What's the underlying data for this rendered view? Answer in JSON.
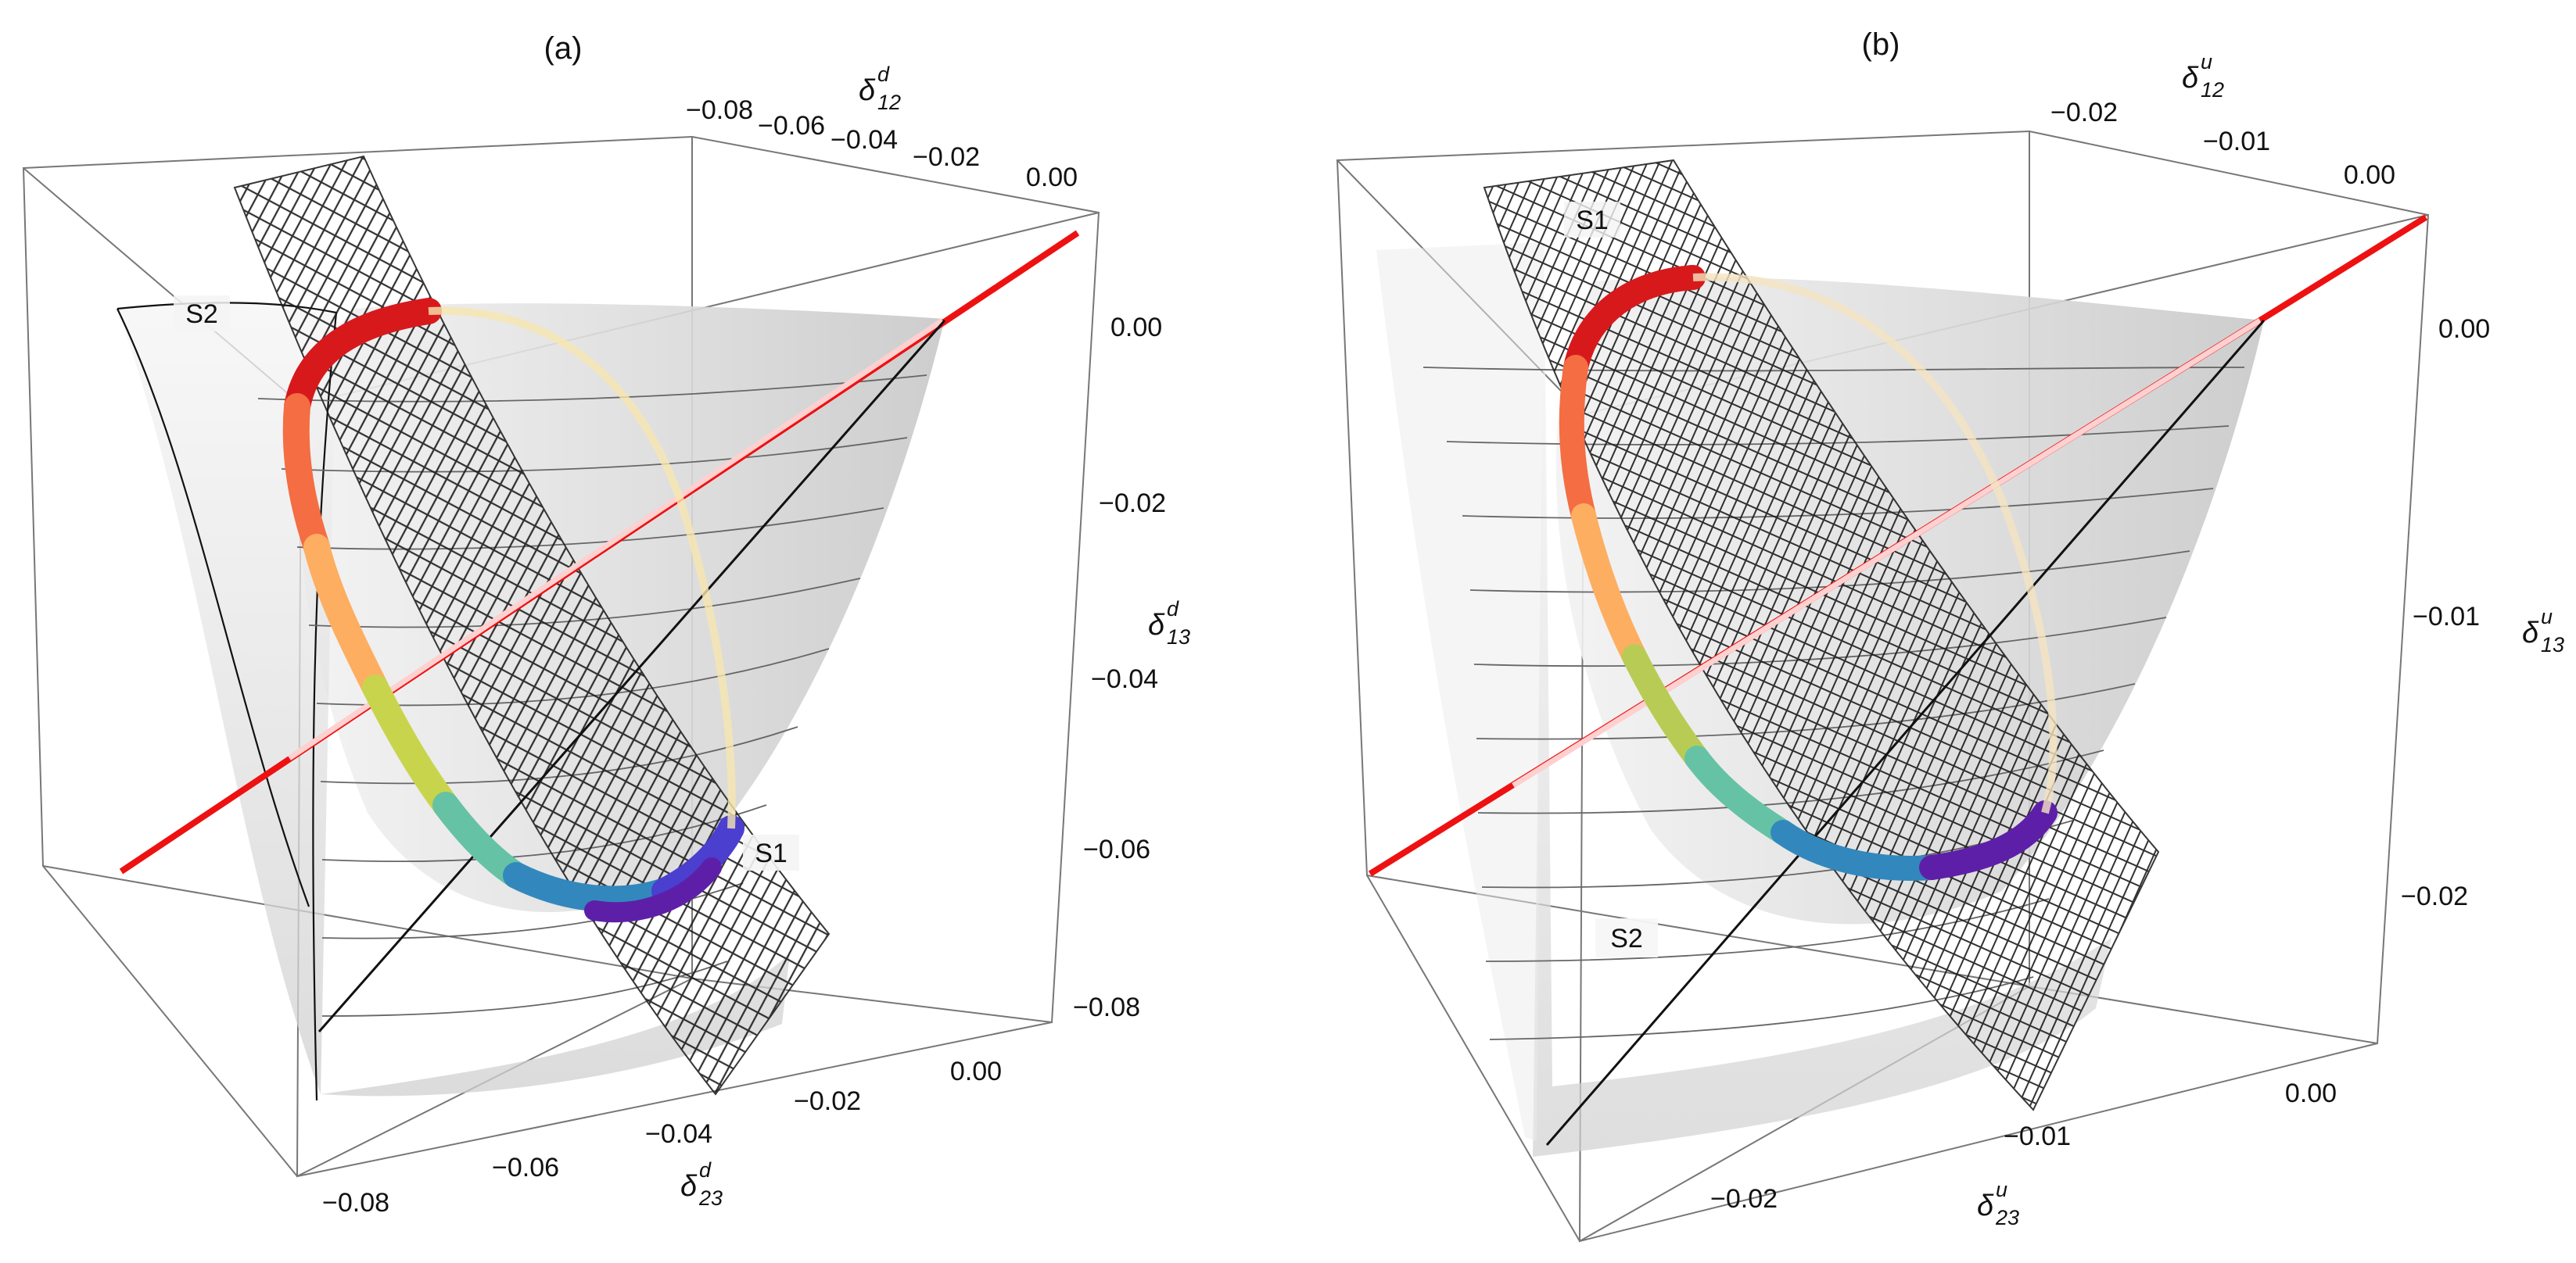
{
  "figure": {
    "panels": [
      {
        "id": "a",
        "label": "(a)",
        "axes": {
          "top": {
            "symbol": "δ",
            "sup": "d",
            "sub": "12",
            "ticks": [
              "−0.08",
              "−0.06",
              "−0.04",
              "−0.02",
              "0.00"
            ]
          },
          "right": {
            "symbol": "δ",
            "sup": "d",
            "sub": "13",
            "ticks": [
              "0.00",
              "−0.02",
              "−0.04",
              "−0.06",
              "−0.08"
            ]
          },
          "bottom": {
            "symbol": "δ",
            "sup": "d",
            "sub": "23",
            "ticks": [
              "−0.08",
              "−0.06",
              "−0.04",
              "−0.02",
              "0.00"
            ]
          }
        },
        "surfaces": {
          "s1": "S1",
          "s2": "S2"
        }
      },
      {
        "id": "b",
        "label": "(b)",
        "axes": {
          "top": {
            "symbol": "δ",
            "sup": "u",
            "sub": "12",
            "ticks": [
              "−0.02",
              "−0.01",
              "0.00"
            ]
          },
          "right": {
            "symbol": "δ",
            "sup": "u",
            "sub": "13",
            "ticks": [
              "0.00",
              "−0.01",
              "−0.02"
            ]
          },
          "bottom": {
            "symbol": "δ",
            "sup": "u",
            "sub": "23",
            "ticks": [
              "−0.02",
              "−0.01",
              "0.00"
            ]
          }
        },
        "surfaces": {
          "s1": "S1",
          "s2": "S2"
        }
      }
    ]
  },
  "colors": {
    "box": "#666666",
    "surface": "#d9d9d9",
    "mesh": "#222222",
    "line": "#ee1111",
    "ring": [
      "#d7191c",
      "#f46d43",
      "#fdae61",
      "#d9d94a",
      "#a6d96a",
      "#66c2a5",
      "#3288bd",
      "#3f4fc8",
      "#5e1fa8"
    ]
  }
}
